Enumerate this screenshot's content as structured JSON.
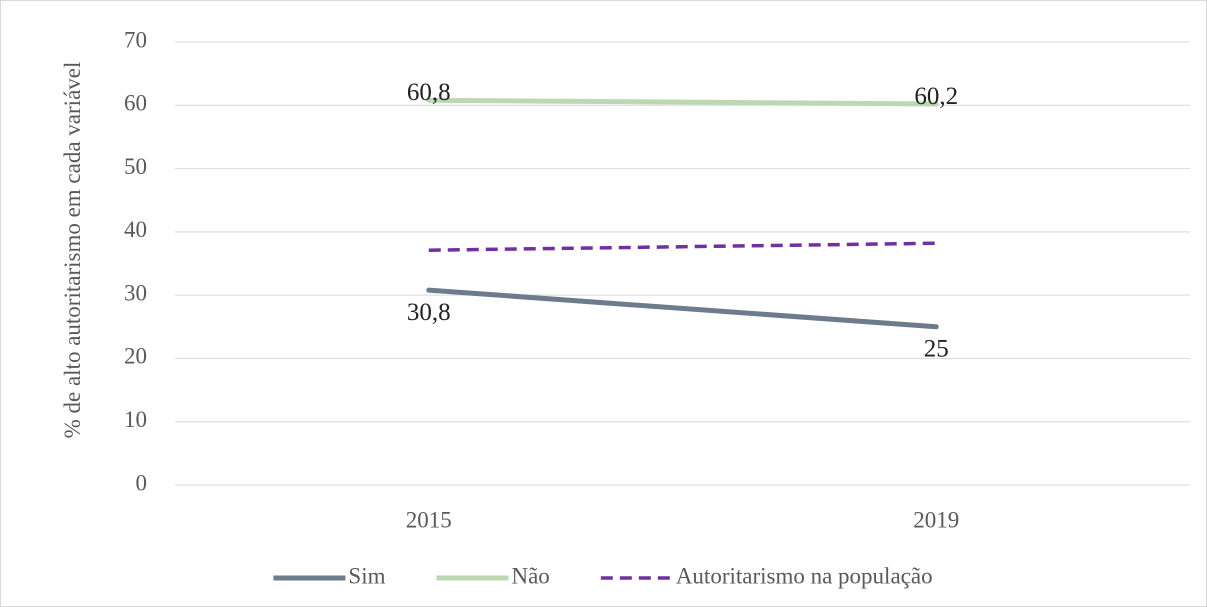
{
  "chart_data": {
    "type": "line",
    "y_label": "% de alto autoritarismo em cada variável",
    "categories": [
      "2015",
      "2019"
    ],
    "series": [
      {
        "name": "Sim",
        "color": "#6d7b8d",
        "dashed": false,
        "values": [
          30.8,
          25
        ],
        "value_labels": [
          "30,8",
          "25"
        ],
        "label_position": "below"
      },
      {
        "name": "Não",
        "color": "#bcd8b3",
        "dashed": false,
        "values": [
          60.8,
          60.2
        ],
        "value_labels": [
          "60,8",
          "60,2"
        ],
        "label_position": "center"
      },
      {
        "name": "Autoritarismo na população",
        "color": "#7030a0",
        "dashed": true,
        "values": [
          37.1,
          38.2
        ]
      }
    ],
    "ylim": [
      0,
      70
    ],
    "yticks": [
      0,
      10,
      20,
      30,
      40,
      50,
      60,
      70
    ],
    "grid": true,
    "legend": "bottom"
  }
}
